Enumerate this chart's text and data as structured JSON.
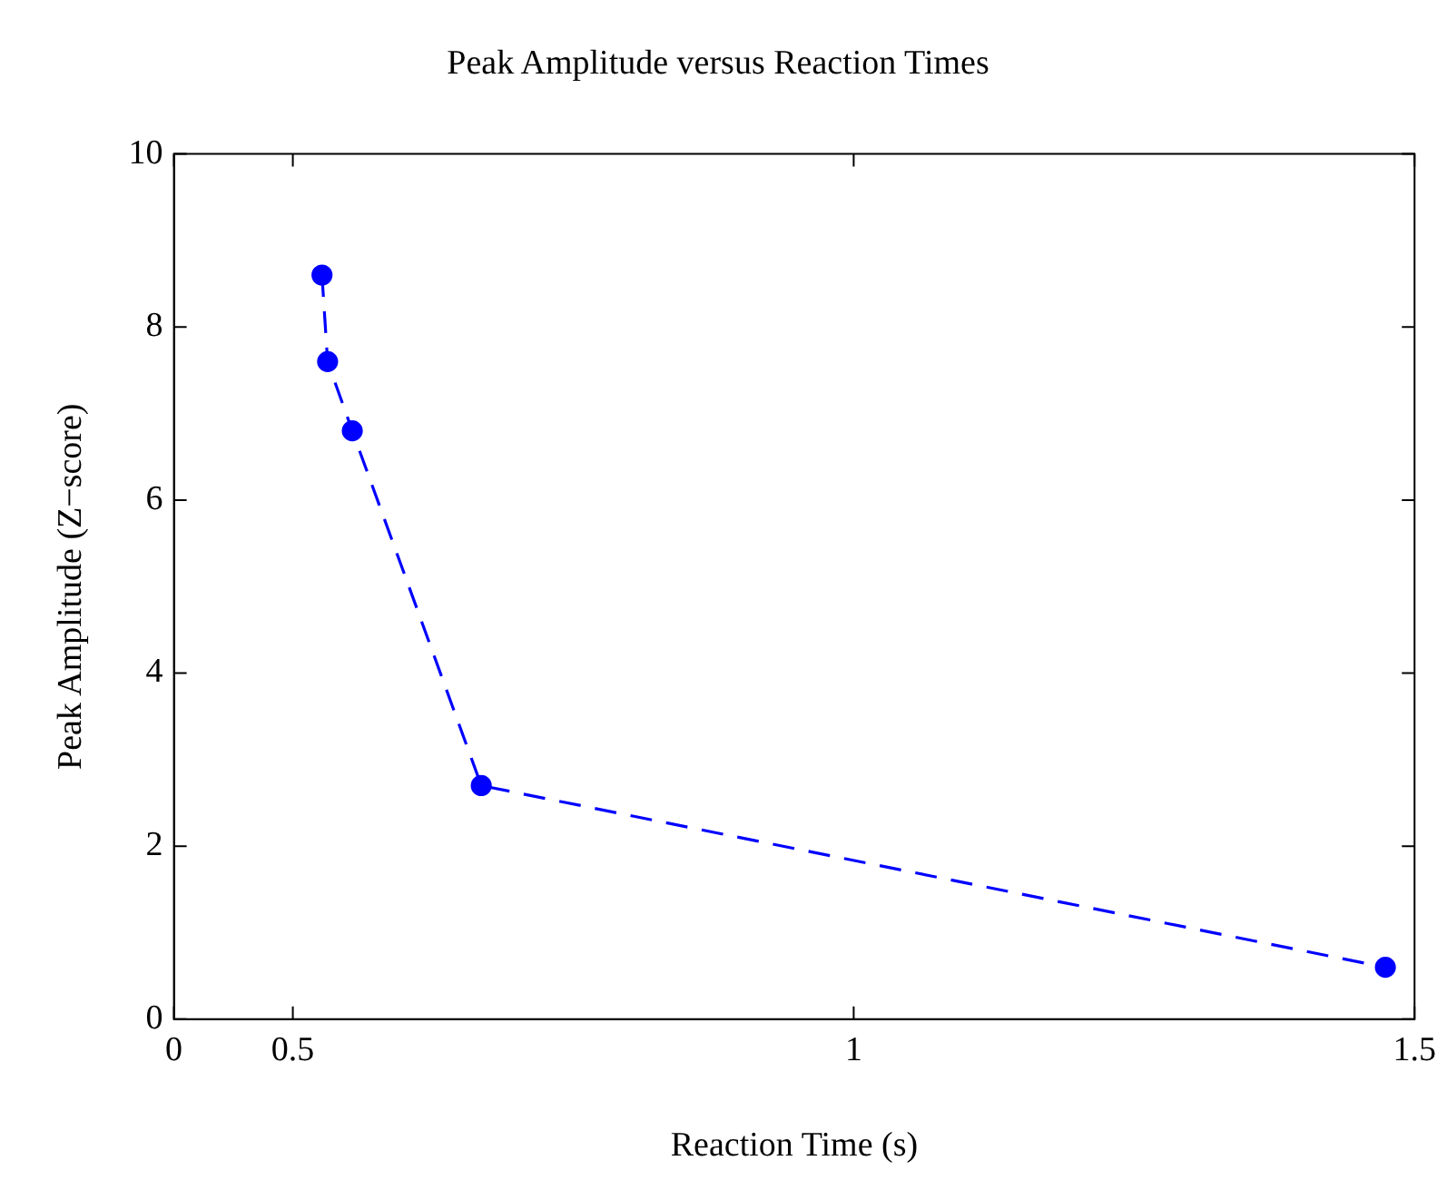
{
  "chart_data": {
    "type": "line",
    "title": "Peak Amplitude versus Reaction Times",
    "xlabel": "Reaction Time (s)",
    "ylabel": "Peak Amplitude (Z−score)",
    "x": [
      0.526,
      0.531,
      0.553,
      0.668,
      1.474
    ],
    "series": [
      {
        "color": "#0000ff",
        "values": [
          8.6,
          7.6,
          6.8,
          2.7,
          0.6
        ]
      }
    ],
    "xlim": [
      0.394,
      1.5
    ],
    "xticks": [
      {
        "value": 0.394,
        "label": "0"
      },
      0.5,
      1,
      1.5
    ],
    "ylim": [
      0,
      10
    ],
    "yticks": [
      0,
      2,
      4,
      6,
      8,
      10
    ],
    "grid": false,
    "legend": false,
    "marker": "circle",
    "line_style": "dashed"
  }
}
